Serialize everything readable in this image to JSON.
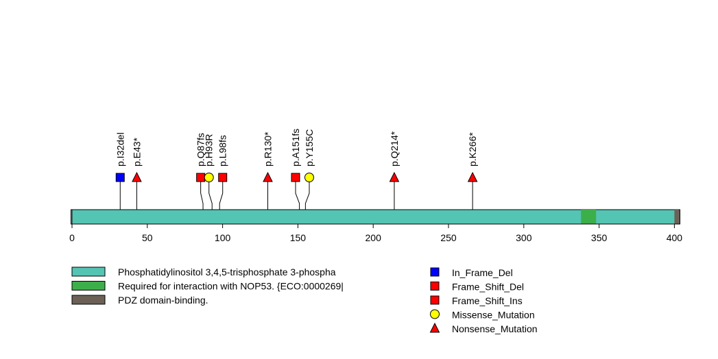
{
  "chart_data": {
    "type": "lollipop",
    "title": "",
    "xlabel": "",
    "ylabel": "",
    "xlim": [
      0,
      403
    ],
    "protein_length": 403,
    "ticks": [
      0,
      50,
      100,
      150,
      200,
      250,
      300,
      350,
      400
    ],
    "domains": [
      {
        "name": "Phosphatidylinositol 3,4,5-trisphosphate 3-phospha",
        "start": 1,
        "end": 403,
        "color": "#54C4B3"
      },
      {
        "name": "Required for interaction with NOP53. {ECO:0000269|",
        "start": 338,
        "end": 348,
        "color": "#3DAF4A"
      },
      {
        "name": "PDZ domain-binding.",
        "start": 400,
        "end": 403,
        "color": "#6B6157"
      }
    ],
    "mutations": [
      {
        "label": "p.I32del",
        "position": 32,
        "type": "In_Frame_Del"
      },
      {
        "label": "p.E43*",
        "position": 43,
        "type": "Nonsense_Mutation"
      },
      {
        "label": "p.Q87fs",
        "position": 87,
        "type": "Frame_Shift_Del"
      },
      {
        "label": "p.H93R",
        "position": 93,
        "type": "Missense_Mutation"
      },
      {
        "label": "p.L98fs",
        "position": 98,
        "type": "Frame_Shift_Del"
      },
      {
        "label": "p.R130*",
        "position": 130,
        "type": "Nonsense_Mutation"
      },
      {
        "label": "p.A151fs",
        "position": 151,
        "type": "Frame_Shift_Ins"
      },
      {
        "label": "p.Y155C",
        "position": 155,
        "type": "Missense_Mutation"
      },
      {
        "label": "p.Q214*",
        "position": 214,
        "type": "Nonsense_Mutation"
      },
      {
        "label": "p.K266*",
        "position": 266,
        "type": "Nonsense_Mutation"
      }
    ],
    "mutation_types": [
      {
        "name": "In_Frame_Del",
        "shape": "square",
        "color": "#0000FF"
      },
      {
        "name": "Frame_Shift_Del",
        "shape": "square",
        "color": "#FF0000"
      },
      {
        "name": "Frame_Shift_Ins",
        "shape": "square",
        "color": "#FF0000"
      },
      {
        "name": "Missense_Mutation",
        "shape": "circle",
        "color": "#FFFF00"
      },
      {
        "name": "Nonsense_Mutation",
        "shape": "triangle",
        "color": "#FF0000"
      }
    ]
  }
}
